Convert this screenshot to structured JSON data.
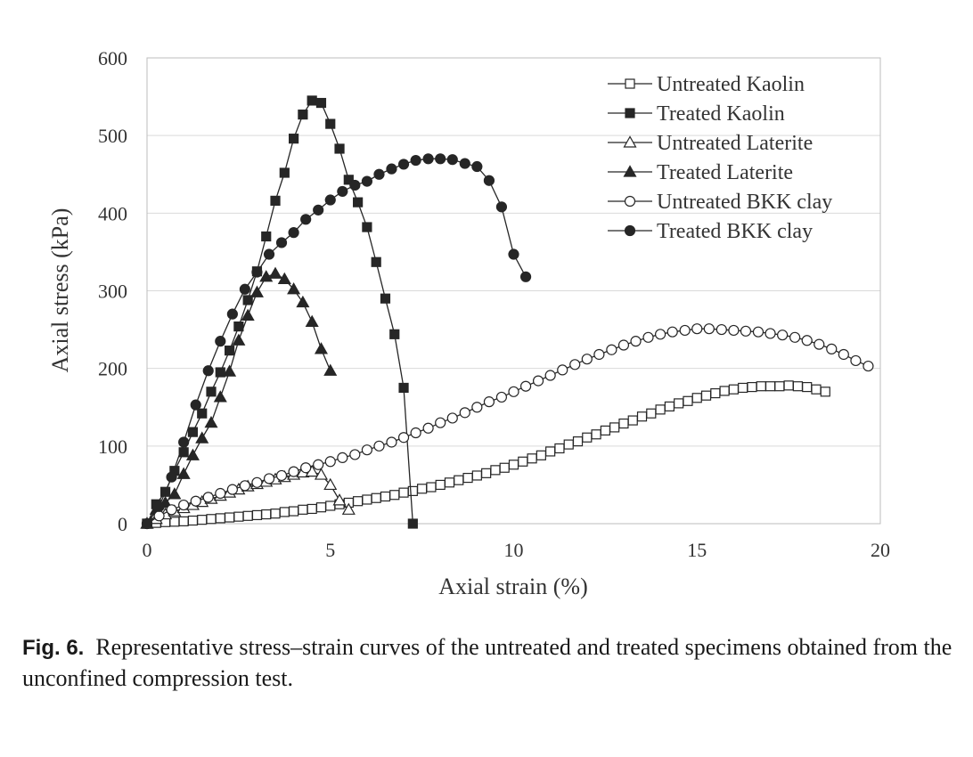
{
  "chart_data": {
    "type": "line",
    "xlabel": "Axial strain (%)",
    "ylabel": "Axial stress (kPa)",
    "xlim": [
      0,
      20
    ],
    "ylim": [
      0,
      600
    ],
    "xticks": [
      0,
      5,
      10,
      15,
      20
    ],
    "yticks": [
      0,
      100,
      200,
      300,
      400,
      500,
      600
    ],
    "grid": "horizontal",
    "legend": "top-right",
    "series": [
      {
        "name": "Untreated Kaolin",
        "marker": "square",
        "fill": "open",
        "x": [
          0,
          0.25,
          0.5,
          0.75,
          1.0,
          1.25,
          1.5,
          1.75,
          2.0,
          2.25,
          2.5,
          2.75,
          3.0,
          3.25,
          3.5,
          3.75,
          4.0,
          4.25,
          4.5,
          4.75,
          5.0,
          5.25,
          5.5,
          5.75,
          6.0,
          6.25,
          6.5,
          6.75,
          7.0,
          7.25,
          7.5,
          7.75,
          8.0,
          8.25,
          8.5,
          8.75,
          9.0,
          9.25,
          9.5,
          9.75,
          10.0,
          10.25,
          10.5,
          10.75,
          11.0,
          11.25,
          11.5,
          11.75,
          12.0,
          12.25,
          12.5,
          12.75,
          13.0,
          13.25,
          13.5,
          13.75,
          14.0,
          14.25,
          14.5,
          14.75,
          15.0,
          15.25,
          15.5,
          15.75,
          16.0,
          16.25,
          16.5,
          16.75,
          17.0,
          17.25,
          17.5,
          17.75,
          18.0,
          18.25,
          18.5
        ],
        "y": [
          0,
          1,
          2,
          2.5,
          3,
          4,
          5,
          6,
          7,
          8,
          9,
          10,
          11,
          12,
          13,
          15,
          16,
          18,
          19,
          21,
          23,
          25,
          27,
          29,
          31,
          33,
          35,
          37,
          40,
          42,
          45,
          47,
          50,
          53,
          56,
          59,
          62,
          65,
          69,
          72,
          76,
          80,
          84,
          88,
          93,
          97,
          102,
          106,
          111,
          115,
          120,
          124,
          129,
          133,
          138,
          142,
          147,
          151,
          155,
          158,
          162,
          165,
          168,
          171,
          173,
          175,
          176,
          177,
          177,
          177,
          178,
          177,
          176,
          173,
          170
        ]
      },
      {
        "name": "Treated Kaolin",
        "marker": "square",
        "fill": "filled",
        "x": [
          0,
          0.25,
          0.5,
          0.75,
          1.0,
          1.25,
          1.5,
          1.75,
          2.0,
          2.25,
          2.5,
          2.75,
          3.0,
          3.25,
          3.5,
          3.75,
          4.0,
          4.25,
          4.5,
          4.75,
          5.0,
          5.25,
          5.5,
          5.75,
          6.0,
          6.25,
          6.5,
          6.75,
          7.0,
          7.25
        ],
        "y": [
          0,
          25,
          41,
          68,
          92,
          118,
          142,
          170,
          195,
          223,
          254,
          288,
          325,
          370,
          416,
          452,
          496,
          527,
          545,
          542,
          515,
          483,
          443,
          414,
          382,
          337,
          290,
          244,
          175,
          0
        ]
      },
      {
        "name": "Untreated Laterite",
        "marker": "triangle",
        "fill": "open",
        "x": [
          0,
          0.25,
          0.5,
          0.75,
          1.0,
          1.25,
          1.5,
          1.75,
          2.0,
          2.25,
          2.5,
          2.75,
          3.0,
          3.25,
          3.5,
          3.75,
          4.0,
          4.25,
          4.5,
          4.75,
          5.0,
          5.25,
          5.5
        ],
        "y": [
          0,
          6,
          12,
          16,
          20,
          24,
          28,
          32,
          36,
          40,
          44,
          48,
          51,
          54,
          57,
          60,
          63,
          66,
          67,
          63,
          50,
          30,
          18
        ]
      },
      {
        "name": "Treated Laterite",
        "marker": "triangle",
        "fill": "filled",
        "x": [
          0,
          0.25,
          0.5,
          0.75,
          1.0,
          1.25,
          1.5,
          1.75,
          2.0,
          2.25,
          2.5,
          2.75,
          3.0,
          3.25,
          3.5,
          3.75,
          4.0,
          4.25,
          4.5,
          4.75,
          5.0
        ],
        "y": [
          0,
          18,
          27,
          38,
          64,
          88,
          110,
          130,
          163,
          196,
          236,
          268,
          298,
          318,
          322,
          315,
          302,
          285,
          260,
          225,
          197
        ]
      },
      {
        "name": "Untreated BKK clay",
        "marker": "circle",
        "fill": "open",
        "x": [
          0,
          0.33,
          0.67,
          1.0,
          1.33,
          1.67,
          2.0,
          2.33,
          2.67,
          3.0,
          3.33,
          3.67,
          4.0,
          4.33,
          4.67,
          5.0,
          5.33,
          5.67,
          6.0,
          6.33,
          6.67,
          7.0,
          7.33,
          7.67,
          8.0,
          8.33,
          8.67,
          9.0,
          9.33,
          9.67,
          10.0,
          10.33,
          10.67,
          11.0,
          11.33,
          11.67,
          12.0,
          12.33,
          12.67,
          13.0,
          13.33,
          13.67,
          14.0,
          14.33,
          14.67,
          15.0,
          15.33,
          15.67,
          16.0,
          16.33,
          16.67,
          17.0,
          17.33,
          17.67,
          18.0,
          18.33,
          18.67,
          19.0,
          19.33,
          19.67
        ],
        "y": [
          0,
          10,
          18,
          24,
          29,
          34,
          39,
          44,
          49,
          53,
          58,
          62,
          67,
          72,
          76,
          80,
          85,
          89,
          95,
          100,
          105,
          111,
          117,
          123,
          130,
          136,
          143,
          150,
          157,
          163,
          170,
          177,
          184,
          191,
          198,
          205,
          212,
          218,
          224,
          230,
          235,
          240,
          244,
          247,
          249,
          251,
          251,
          250,
          249,
          248,
          247,
          245,
          243,
          240,
          236,
          231,
          225,
          218,
          210,
          203
        ]
      },
      {
        "name": "Treated BKK clay",
        "marker": "circle",
        "fill": "filled",
        "x": [
          0,
          0.33,
          0.67,
          1.0,
          1.33,
          1.67,
          2.0,
          2.33,
          2.67,
          3.0,
          3.33,
          3.67,
          4.0,
          4.33,
          4.67,
          5.0,
          5.33,
          5.67,
          6.0,
          6.33,
          6.67,
          7.0,
          7.33,
          7.67,
          8.0,
          8.33,
          8.67,
          9.0,
          9.33,
          9.67,
          10.0,
          10.33
        ],
        "y": [
          0,
          22,
          60,
          105,
          153,
          197,
          235,
          270,
          302,
          324,
          347,
          362,
          375,
          392,
          404,
          417,
          428,
          436,
          441,
          450,
          457,
          463,
          468,
          470,
          470,
          469,
          464,
          460,
          442,
          408,
          347,
          318
        ]
      }
    ]
  },
  "caption": {
    "fig_number": "Fig. 6.",
    "text": "Representative stress–strain curves of the untreated and treated specimens obtained from the unconfined compression test."
  }
}
